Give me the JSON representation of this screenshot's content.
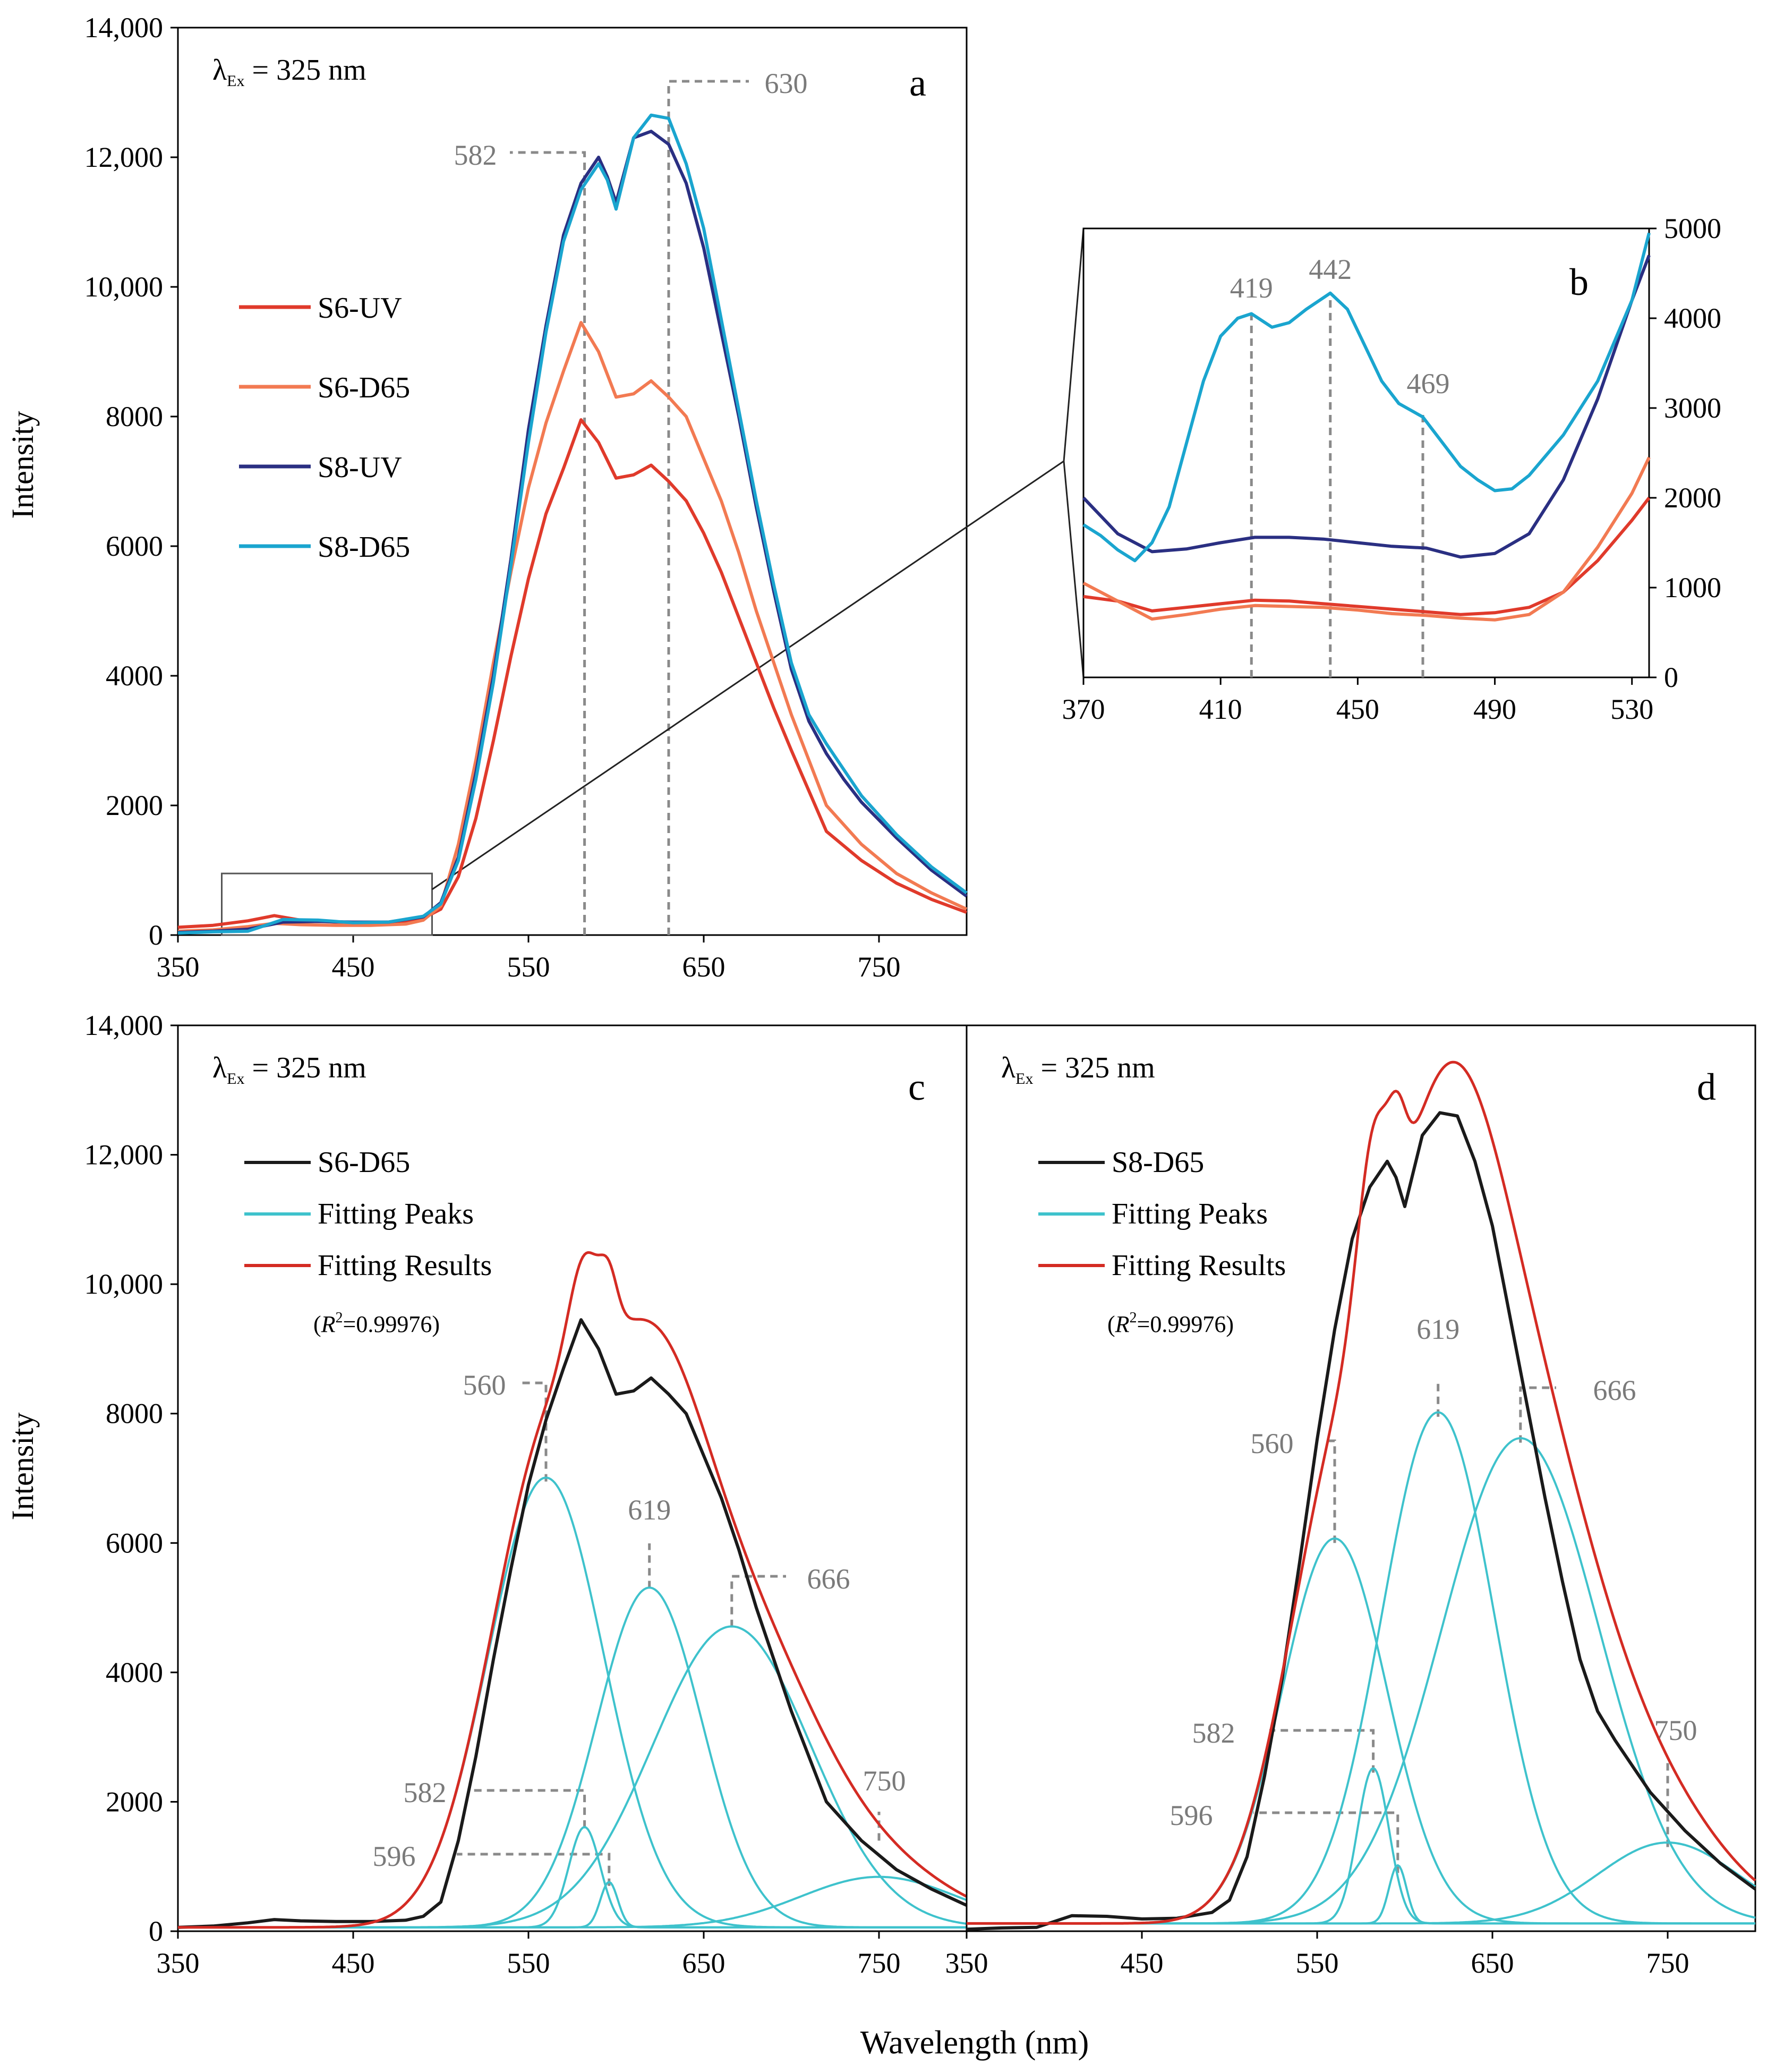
{
  "figure": {
    "shared_xlabel": "Wavelength (nm)",
    "ylabel": "Intensity"
  },
  "colors": {
    "S6-UV": "#e03a2b",
    "S6-D65": "#f27a52",
    "S8-UV": "#2a2f82",
    "S8-D65": "#1aa5cf",
    "data_black": "#1a1a1a",
    "fit_peak": "#3ec2cc",
    "fit_result": "#d42b23",
    "guide": "#8a8a8a"
  },
  "chart_data": [
    {
      "id": "a",
      "type": "line",
      "panel_label": "a",
      "excitation_label": "λEx = 325 nm",
      "xlabel": "",
      "ylabel": "Intensity",
      "xlim": [
        350,
        800
      ],
      "ylim": [
        0,
        14000
      ],
      "xticks": [
        350,
        450,
        550,
        650,
        750
      ],
      "yticks": [
        0,
        2000,
        4000,
        6000,
        8000,
        10000,
        12000,
        14000
      ],
      "ytick_labels": [
        "0",
        "2000",
        "4000",
        "6000",
        "8000",
        "10,000",
        "12,000",
        "14,000"
      ],
      "legend": [
        "S6-UV",
        "S6-D65",
        "S8-UV",
        "S8-D65"
      ],
      "series": [
        {
          "name": "S6-UV",
          "x": [
            350,
            370,
            390,
            405,
            420,
            440,
            460,
            480,
            490,
            500,
            510,
            520,
            530,
            540,
            550,
            560,
            570,
            580,
            590,
            600,
            610,
            620,
            630,
            640,
            650,
            660,
            670,
            680,
            690,
            700,
            720,
            740,
            760,
            780,
            800
          ],
          "values": [
            120,
            150,
            220,
            300,
            230,
            200,
            190,
            210,
            260,
            400,
            900,
            1800,
            3000,
            4300,
            5500,
            6500,
            7200,
            7950,
            7600,
            7050,
            7100,
            7250,
            7000,
            6700,
            6200,
            5600,
            4900,
            4200,
            3500,
            2850,
            1600,
            1150,
            800,
            550,
            350
          ]
        },
        {
          "name": "S6-D65",
          "x": [
            350,
            370,
            390,
            405,
            420,
            440,
            460,
            480,
            490,
            500,
            510,
            520,
            530,
            540,
            550,
            560,
            570,
            580,
            590,
            600,
            610,
            620,
            630,
            640,
            650,
            660,
            670,
            680,
            690,
            700,
            720,
            740,
            760,
            780,
            800
          ],
          "values": [
            60,
            80,
            130,
            180,
            160,
            150,
            150,
            170,
            230,
            450,
            1400,
            2700,
            4200,
            5600,
            6900,
            7900,
            8700,
            9450,
            9000,
            8300,
            8350,
            8550,
            8300,
            8000,
            7350,
            6700,
            5900,
            5000,
            4200,
            3400,
            2000,
            1400,
            950,
            650,
            400
          ]
        },
        {
          "name": "S8-UV",
          "x": [
            350,
            370,
            390,
            410,
            430,
            450,
            470,
            490,
            500,
            510,
            520,
            530,
            540,
            550,
            560,
            570,
            580,
            590,
            595,
            600,
            610,
            620,
            630,
            640,
            650,
            660,
            670,
            680,
            690,
            700,
            710,
            720,
            730,
            740,
            760,
            780,
            800
          ],
          "values": [
            40,
            60,
            90,
            200,
            210,
            200,
            200,
            280,
            500,
            1200,
            2500,
            4000,
            5800,
            7800,
            9400,
            10800,
            11600,
            12000,
            11700,
            11300,
            12300,
            12400,
            12200,
            11600,
            10600,
            9300,
            8000,
            6600,
            5300,
            4100,
            3300,
            2800,
            2400,
            2050,
            1500,
            1000,
            600
          ]
        },
        {
          "name": "S8-D65",
          "x": [
            350,
            370,
            390,
            410,
            430,
            450,
            470,
            490,
            500,
            510,
            520,
            530,
            540,
            550,
            560,
            570,
            580,
            590,
            595,
            600,
            610,
            620,
            630,
            640,
            650,
            660,
            670,
            680,
            690,
            700,
            710,
            720,
            730,
            740,
            760,
            780,
            800
          ],
          "values": [
            30,
            50,
            60,
            240,
            230,
            190,
            200,
            290,
            480,
            1150,
            2400,
            3900,
            5700,
            7600,
            9300,
            10700,
            11500,
            11900,
            11650,
            11200,
            12300,
            12650,
            12600,
            11900,
            10900,
            9500,
            8100,
            6700,
            5400,
            4200,
            3400,
            2950,
            2550,
            2150,
            1550,
            1050,
            650
          ]
        }
      ],
      "annotations": [
        {
          "label": "582",
          "x": 582,
          "y": 11800
        },
        {
          "label": "630",
          "x": 630,
          "y": 13200
        }
      ],
      "zoom_box": {
        "xlim": [
          375,
          495
        ],
        "ylim": [
          0,
          950
        ]
      }
    },
    {
      "id": "b",
      "type": "line",
      "panel_label": "b",
      "xlim": [
        370,
        535
      ],
      "ylim": [
        0,
        5000
      ],
      "xticks": [
        370,
        410,
        450,
        490,
        530
      ],
      "yticks": [
        0,
        1000,
        2000,
        3000,
        4000,
        5000
      ],
      "yaxis_position": "right",
      "series": [
        {
          "name": "S6-UV",
          "x": [
            370,
            380,
            390,
            400,
            410,
            420,
            430,
            440,
            450,
            460,
            470,
            480,
            490,
            500,
            510,
            520,
            530,
            535
          ],
          "values": [
            900,
            850,
            740,
            780,
            820,
            860,
            850,
            820,
            790,
            760,
            730,
            700,
            720,
            780,
            950,
            1300,
            1750,
            2000
          ]
        },
        {
          "name": "S6-D65",
          "x": [
            370,
            380,
            390,
            400,
            410,
            420,
            430,
            440,
            450,
            460,
            470,
            480,
            490,
            500,
            510,
            520,
            530,
            535
          ],
          "values": [
            1050,
            850,
            650,
            700,
            760,
            800,
            790,
            780,
            750,
            710,
            690,
            660,
            640,
            700,
            950,
            1450,
            2050,
            2450
          ]
        },
        {
          "name": "S8-UV",
          "x": [
            370,
            375,
            380,
            390,
            400,
            410,
            420,
            430,
            440,
            450,
            460,
            470,
            480,
            490,
            500,
            510,
            520,
            530,
            535
          ],
          "values": [
            2000,
            1800,
            1600,
            1400,
            1430,
            1500,
            1560,
            1560,
            1540,
            1500,
            1460,
            1440,
            1340,
            1380,
            1600,
            2200,
            3100,
            4200,
            4700
          ]
        },
        {
          "name": "S8-D65",
          "x": [
            370,
            375,
            380,
            385,
            390,
            395,
            400,
            405,
            410,
            415,
            419,
            425,
            430,
            435,
            442,
            447,
            452,
            457,
            462,
            469,
            475,
            480,
            485,
            490,
            495,
            500,
            510,
            520,
            530,
            535
          ],
          "values": [
            1700,
            1580,
            1420,
            1300,
            1500,
            1900,
            2600,
            3300,
            3800,
            4000,
            4050,
            3900,
            3950,
            4100,
            4280,
            4100,
            3700,
            3300,
            3050,
            2900,
            2600,
            2350,
            2200,
            2080,
            2100,
            2250,
            2700,
            3300,
            4200,
            4950
          ]
        }
      ],
      "annotations": [
        {
          "label": "419",
          "x": 419,
          "y": 4050
        },
        {
          "label": "442",
          "x": 442,
          "y": 4280
        },
        {
          "label": "469",
          "x": 469,
          "y": 2950
        }
      ]
    },
    {
      "id": "c",
      "type": "line",
      "panel_label": "c",
      "excitation_label": "λEx = 325 nm",
      "xlabel": "",
      "ylabel": "Intensity",
      "xlim": [
        350,
        800
      ],
      "ylim": [
        0,
        14000
      ],
      "xticks": [
        350,
        450,
        550,
        650,
        750
      ],
      "yticks": [
        0,
        2000,
        4000,
        6000,
        8000,
        10000,
        12000,
        14000
      ],
      "ytick_labels": [
        "0",
        "2000",
        "4000",
        "6000",
        "8000",
        "10,000",
        "12,000",
        "14,000"
      ],
      "legend": [
        "S6-D65",
        "Fitting Peaks",
        "Fitting Results"
      ],
      "r_squared": "(R2=0.99976)",
      "baseline": 60,
      "peaks": [
        {
          "center": 560,
          "amplitude": 6950,
          "sigma": 33
        },
        {
          "center": 582,
          "amplitude": 1550,
          "sigma": 9
        },
        {
          "center": 596,
          "amplitude": 700,
          "sigma": 5
        },
        {
          "center": 619,
          "amplitude": 5250,
          "sigma": 30
        },
        {
          "center": 666,
          "amplitude": 4650,
          "sigma": 45
        },
        {
          "center": 750,
          "amplitude": 780,
          "sigma": 45
        }
      ],
      "data_series": {
        "name": "S6-D65",
        "x": [
          350,
          370,
          390,
          405,
          420,
          440,
          460,
          480,
          490,
          500,
          510,
          520,
          530,
          540,
          550,
          560,
          570,
          580,
          590,
          600,
          610,
          620,
          630,
          640,
          650,
          660,
          670,
          680,
          690,
          700,
          720,
          740,
          760,
          780,
          800
        ],
        "values": [
          60,
          80,
          130,
          180,
          160,
          150,
          150,
          170,
          230,
          450,
          1400,
          2700,
          4200,
          5600,
          6900,
          7900,
          8700,
          9450,
          9000,
          8300,
          8350,
          8550,
          8300,
          8000,
          7350,
          6700,
          5900,
          5000,
          4200,
          3400,
          2000,
          1400,
          950,
          650,
          400
        ]
      },
      "annotations": [
        {
          "label": "560",
          "x": 560
        },
        {
          "label": "582",
          "x": 582
        },
        {
          "label": "596",
          "x": 596
        },
        {
          "label": "619",
          "x": 619
        },
        {
          "label": "666",
          "x": 666
        },
        {
          "label": "750",
          "x": 750
        }
      ]
    },
    {
      "id": "d",
      "type": "line",
      "panel_label": "d",
      "excitation_label": "λEx = 325 nm",
      "xlabel": "",
      "xlim": [
        350,
        800
      ],
      "ylim": [
        0,
        14000
      ],
      "xticks": [
        350,
        450,
        550,
        650,
        750
      ],
      "legend": [
        "S8-D65",
        "Fitting Peaks",
        "Fitting Results"
      ],
      "r_squared": "(R2=0.99976)",
      "baseline": 120,
      "peaks": [
        {
          "center": 560,
          "amplitude": 5950,
          "sigma": 30
        },
        {
          "center": 582,
          "amplitude": 2400,
          "sigma": 9
        },
        {
          "center": 596,
          "amplitude": 900,
          "sigma": 5
        },
        {
          "center": 619,
          "amplitude": 7900,
          "sigma": 32
        },
        {
          "center": 666,
          "amplitude": 7500,
          "sigma": 45
        },
        {
          "center": 750,
          "amplitude": 1250,
          "sigma": 40
        }
      ],
      "data_series": {
        "name": "S8-D65",
        "x": [
          350,
          370,
          390,
          410,
          430,
          450,
          470,
          490,
          500,
          510,
          520,
          530,
          540,
          550,
          560,
          570,
          580,
          590,
          595,
          600,
          610,
          620,
          630,
          640,
          650,
          660,
          670,
          680,
          690,
          700,
          710,
          720,
          730,
          740,
          760,
          780,
          800
        ],
        "values": [
          30,
          50,
          60,
          240,
          230,
          190,
          200,
          290,
          480,
          1150,
          2400,
          3900,
          5700,
          7600,
          9300,
          10700,
          11500,
          11900,
          11650,
          11200,
          12300,
          12650,
          12600,
          11900,
          10900,
          9500,
          8100,
          6700,
          5400,
          4200,
          3400,
          2950,
          2550,
          2150,
          1550,
          1050,
          650
        ]
      },
      "annotations": [
        {
          "label": "560",
          "x": 560
        },
        {
          "label": "582",
          "x": 582
        },
        {
          "label": "596",
          "x": 596
        },
        {
          "label": "619",
          "x": 619
        },
        {
          "label": "666",
          "x": 666
        },
        {
          "label": "750",
          "x": 750
        }
      ]
    }
  ]
}
